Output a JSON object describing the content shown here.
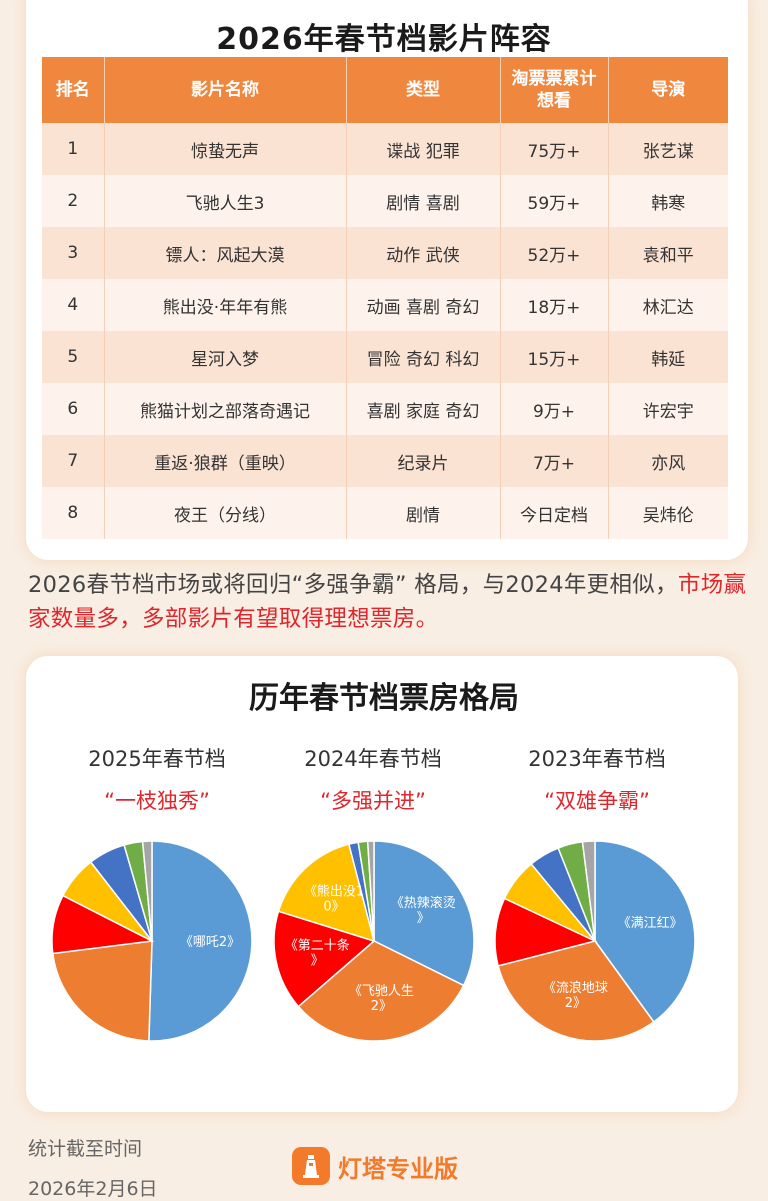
{
  "table": {
    "title": "2026年春节档影片阵容",
    "headers": [
      "排名",
      "影片名称",
      "类型",
      "淘票票累计想看",
      "导演"
    ],
    "rows": [
      {
        "rank": "1",
        "name": "惊蛰无声",
        "genre": "谍战 犯罪",
        "want": "75万+",
        "director": "张艺谋"
      },
      {
        "rank": "2",
        "name": "飞驰人生3",
        "genre": "剧情 喜剧",
        "want": "59万+",
        "director": "韩寒"
      },
      {
        "rank": "3",
        "name": "镖人：风起大漠",
        "genre": "动作 武侠",
        "want": "52万+",
        "director": "袁和平"
      },
      {
        "rank": "4",
        "name": "熊出没·年年有熊",
        "genre": "动画 喜剧 奇幻",
        "want": "18万+",
        "director": "林汇达"
      },
      {
        "rank": "5",
        "name": "星河入梦",
        "genre": "冒险 奇幻 科幻",
        "want": "15万+",
        "director": "韩延"
      },
      {
        "rank": "6",
        "name": "熊猫计划之部落奇遇记",
        "genre": "喜剧 家庭 奇幻",
        "want": "9万+",
        "director": "许宏宇"
      },
      {
        "rank": "7",
        "name": "重返·狼群（重映）",
        "genre": "纪录片",
        "want": "7万+",
        "director": "亦风"
      },
      {
        "rank": "8",
        "name": "夜王（分线）",
        "genre": "剧情",
        "want": "今日定档",
        "director": "吴炜伦"
      }
    ]
  },
  "summary": {
    "normal": "2026春节档市场或将回归“多强争霸” 格局，与2024年更相似，",
    "highlight": "市场赢家数量多，多部影片有望取得理想票房。"
  },
  "chart_data": [
    {
      "type": "pie",
      "title": "2025年春节档",
      "subtitle": "“一枝独秀”",
      "slices": [
        {
          "label": "《哪吒2》",
          "value": 50.5,
          "color": "#5b9bd5"
        },
        {
          "label": "",
          "value": 22.5,
          "color": "#ed7d31"
        },
        {
          "label": "",
          "value": 9.5,
          "color": "#ff0000"
        },
        {
          "label": "",
          "value": 7,
          "color": "#ffc000"
        },
        {
          "label": "",
          "value": 6,
          "color": "#4472c4"
        },
        {
          "label": "",
          "value": 3,
          "color": "#70ad47"
        },
        {
          "label": "",
          "value": 1.5,
          "color": "#a5a5a5"
        }
      ]
    },
    {
      "type": "pie",
      "title": "2024年春节档",
      "subtitle": "“多强并进”",
      "slices": [
        {
          "label": "《热辣滚烫》",
          "value": 32,
          "color": "#5b9bd5"
        },
        {
          "label": "《飞驰人生2》",
          "value": 31,
          "color": "#ed7d31"
        },
        {
          "label": "《第二十条》",
          "value": 16,
          "color": "#ff0000"
        },
        {
          "label": "《熊出没10》",
          "value": 16,
          "color": "#ffc000"
        },
        {
          "label": "",
          "value": 1.5,
          "color": "#4472c4"
        },
        {
          "label": "",
          "value": 1.5,
          "color": "#70ad47"
        },
        {
          "label": "",
          "value": 1,
          "color": "#a5a5a5"
        }
      ]
    },
    {
      "type": "pie",
      "title": "2023年春节档",
      "subtitle": "“双雄争霸”",
      "slices": [
        {
          "label": "《满江红》",
          "value": 40,
          "color": "#5b9bd5"
        },
        {
          "label": "《流浪地球2》",
          "value": 31,
          "color": "#ed7d31"
        },
        {
          "label": "",
          "value": 11,
          "color": "#ff0000"
        },
        {
          "label": "",
          "value": 7,
          "color": "#ffc000"
        },
        {
          "label": "",
          "value": 5,
          "color": "#4472c4"
        },
        {
          "label": "",
          "value": 4,
          "color": "#70ad47"
        },
        {
          "label": "",
          "value": 2,
          "color": "#a5a5a5"
        }
      ]
    }
  ],
  "pie_section_title": "历年春节档票房格局",
  "footer": {
    "label": "统计截至时间",
    "date": "2026年2月6日",
    "brand": "灯塔专业版",
    "brand_icon": "lighthouse-icon"
  }
}
